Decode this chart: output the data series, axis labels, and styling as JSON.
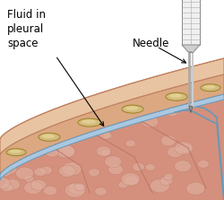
{
  "bg_color": "#ffffff",
  "skin_color": "#e8c4a2",
  "skin_inner_color": "#dba882",
  "skin_outline": "#c08060",
  "rib_fill": "#d4bb80",
  "rib_outline": "#a08828",
  "rib_inner": "#e8d898",
  "pleural_fluid_color": "#aac8e0",
  "pleural_line_color": "#6699bb",
  "lung_base": "#d4907c",
  "lung_light": "#e0b0a0",
  "lung_shadow": "#b07060",
  "lung_fold": "#c07868",
  "text_color": "#000000",
  "text_fontsize": 8.5,
  "label_fluid": "Fluid in\npleural\nspace",
  "label_needle": "Needle",
  "wall_bg": "#f5e8d8",
  "needle_gray": "#c8c8c8",
  "needle_dark": "#888888",
  "syringe_light": "#f0f0f0",
  "syringe_dark": "#888888"
}
